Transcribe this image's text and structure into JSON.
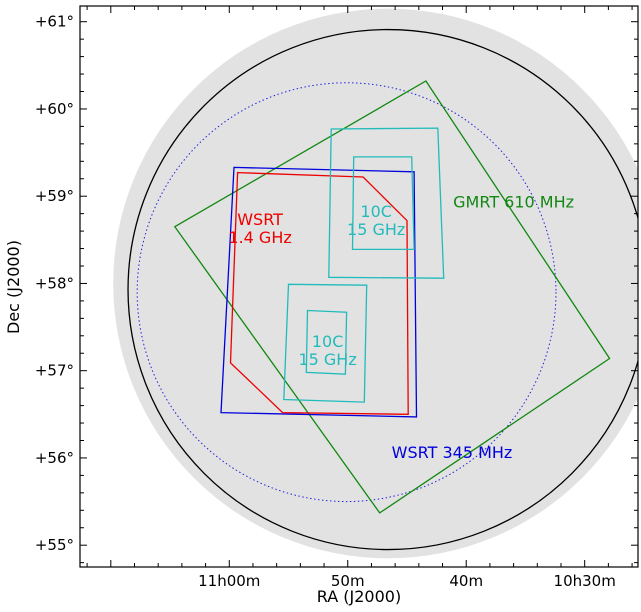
{
  "chart_data": {
    "type": "sky-coverage-map",
    "xlabel": "RA (J2000)",
    "ylabel": "Dec (J2000)",
    "x_ticks": [
      {
        "label": "11h00m",
        "ra_min": 660
      },
      {
        "label": "50m",
        "ra_min": 650
      },
      {
        "label": "40m",
        "ra_min": 640
      },
      {
        "label": "10h30m",
        "ra_min": 630
      }
    ],
    "y_ticks": [
      {
        "label": "+55°",
        "dec": 55
      },
      {
        "label": "+56°",
        "dec": 56
      },
      {
        "label": "+57°",
        "dec": 57
      },
      {
        "label": "+58°",
        "dec": 58
      },
      {
        "label": "+59°",
        "dec": 59
      },
      {
        "label": "+60°",
        "dec": 60
      },
      {
        "label": "+61°",
        "dec": 61
      }
    ],
    "axis_ranges": {
      "ra_min": [
        625.5,
        672.6
      ],
      "dec": [
        54.75,
        61.18
      ]
    },
    "grid": false,
    "background": {
      "color": "#e2e2e2",
      "center_ra_min": 646.6,
      "center_dec": 58.0,
      "radius_deg": 3.15
    },
    "regions": [
      {
        "name": "outer-circle",
        "shape": "circle",
        "color": "#000000",
        "style": "solid",
        "center_ra_min": 646.6,
        "center_dec": 57.93,
        "radius_deg": 2.98
      },
      {
        "name": "inner-dotted-circle",
        "shape": "circle",
        "color": "#2222dd",
        "style": "dotted",
        "center_ra_min": 650.1,
        "center_dec": 57.9,
        "radius_deg": 2.4
      },
      {
        "name": "GMRT 610 MHz",
        "shape": "polygon",
        "color": "#118811",
        "vertices": [
          [
            664.6,
            58.65
          ],
          [
            643.4,
            60.32
          ],
          [
            627.9,
            57.14
          ],
          [
            647.3,
            55.37
          ]
        ]
      },
      {
        "name": "WSRT 345 MHz",
        "shape": "polygon",
        "color": "#0000dd",
        "vertices": [
          [
            659.6,
            59.33
          ],
          [
            644.4,
            59.28
          ],
          [
            644.2,
            56.47
          ],
          [
            660.7,
            56.52
          ]
        ]
      },
      {
        "name": "WSRT 1.4 GHz",
        "shape": "polygon",
        "color": "#ee0000",
        "vertices": [
          [
            659.3,
            59.27
          ],
          [
            648.7,
            59.22
          ],
          [
            645.0,
            58.72
          ],
          [
            644.9,
            56.5
          ],
          [
            655.5,
            56.52
          ],
          [
            659.9,
            57.09
          ]
        ]
      },
      {
        "name": "10C 15 GHz (north, outer)",
        "shape": "polygon",
        "color": "#22bbbb",
        "vertices": [
          [
            651.4,
            59.77
          ],
          [
            642.4,
            59.78
          ],
          [
            641.9,
            58.06
          ],
          [
            651.6,
            58.07
          ]
        ]
      },
      {
        "name": "10C 15 GHz (north, inner)",
        "shape": "polygon",
        "color": "#22bbbb",
        "vertices": [
          [
            649.5,
            59.45
          ],
          [
            644.6,
            59.45
          ],
          [
            644.4,
            58.39
          ],
          [
            649.6,
            58.39
          ]
        ]
      },
      {
        "name": "10C 15 GHz (south, outer)",
        "shape": "polygon",
        "color": "#22bbbb",
        "vertices": [
          [
            655.0,
            57.99
          ],
          [
            648.4,
            57.98
          ],
          [
            648.6,
            56.64
          ],
          [
            655.4,
            56.67
          ]
        ]
      },
      {
        "name": "10C 15 GHz (south, inner)",
        "shape": "polygon",
        "color": "#22bbbb",
        "vertices": [
          [
            653.4,
            57.69
          ],
          [
            650.1,
            57.67
          ],
          [
            650.2,
            56.96
          ],
          [
            653.5,
            56.98
          ]
        ]
      }
    ],
    "annotations": [
      {
        "lines": [
          "WSRT",
          "1.4 GHz"
        ],
        "color": "#ee0000",
        "ra_min": 657.4,
        "dec": 58.67
      },
      {
        "lines": [
          "10C",
          "15 GHz"
        ],
        "color": "#22bbbb",
        "ra_min": 647.6,
        "dec": 58.76
      },
      {
        "lines": [
          "GMRT 610 MHz"
        ],
        "color": "#118811",
        "ra_min": 636.0,
        "dec": 58.87
      },
      {
        "lines": [
          "10C",
          "15 GHz"
        ],
        "color": "#22bbbb",
        "ra_min": 651.7,
        "dec": 57.27
      },
      {
        "lines": [
          "WSRT 345 MHz"
        ],
        "color": "#0000dd",
        "ra_min": 641.2,
        "dec": 56.0
      }
    ]
  }
}
